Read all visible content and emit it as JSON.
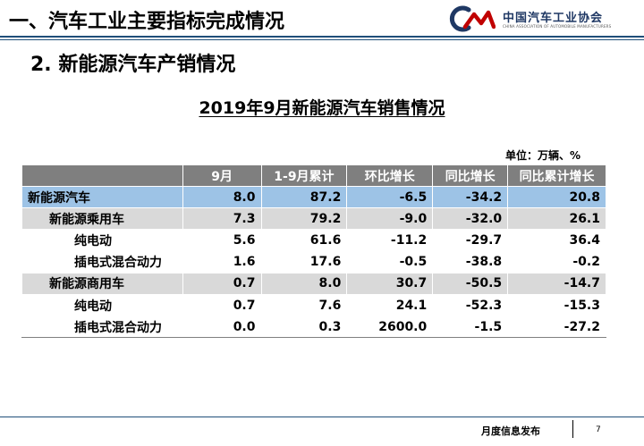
{
  "header": {
    "title": "一、汽车工业主要指标完成情况",
    "logo_cn": "中国汽车工业协会",
    "logo_en": "CHINA ASSOCIATION OF AUTOMOBILE MANUFACTURERS",
    "logo_icon": "caam-logo-icon"
  },
  "section": {
    "title": "2. 新能源汽车产销情况"
  },
  "table": {
    "title": "2019年9月新能源汽车销售情况",
    "unit": "单位：万辆、%",
    "columns": [
      "",
      "9月",
      "1-9月累计",
      "环比增长",
      "同比增长",
      "同比累计增长"
    ],
    "rows": [
      {
        "label": "新能源汽车",
        "level": 0,
        "values": [
          "8.0",
          "87.2",
          "-6.5",
          "-34.2",
          "20.8"
        ]
      },
      {
        "label": "新能源乘用车",
        "level": 1,
        "values": [
          "7.3",
          "79.2",
          "-9.0",
          "-32.0",
          "26.1"
        ]
      },
      {
        "label": "纯电动",
        "level": 2,
        "values": [
          "5.6",
          "61.6",
          "-11.2",
          "-29.7",
          "36.4"
        ]
      },
      {
        "label": "插电式混合动力",
        "level": 2,
        "values": [
          "1.6",
          "17.6",
          "-0.5",
          "-38.8",
          "-0.2"
        ]
      },
      {
        "label": "新能源商用车",
        "level": 1,
        "values": [
          "0.7",
          "8.0",
          "30.7",
          "-50.5",
          "-14.7"
        ]
      },
      {
        "label": "纯电动",
        "level": 2,
        "values": [
          "0.7",
          "7.6",
          "24.1",
          "-52.3",
          "-15.3"
        ]
      },
      {
        "label": "插电式混合动力",
        "level": 2,
        "values": [
          "0.0",
          "0.3",
          "2600.0",
          "-1.5",
          "-27.2"
        ]
      }
    ],
    "colors": {
      "header_bg": "#7f7f7f",
      "level0_bg": "#9dc3e6",
      "level1_bg": "#d9d9d9",
      "level2_bg": "#ffffff"
    }
  },
  "footer": {
    "text": "月度信息发布",
    "page": "7"
  },
  "colors": {
    "rule": "#1f4e79",
    "logo_red": "#c00000",
    "logo_blue": "#1f3864"
  }
}
